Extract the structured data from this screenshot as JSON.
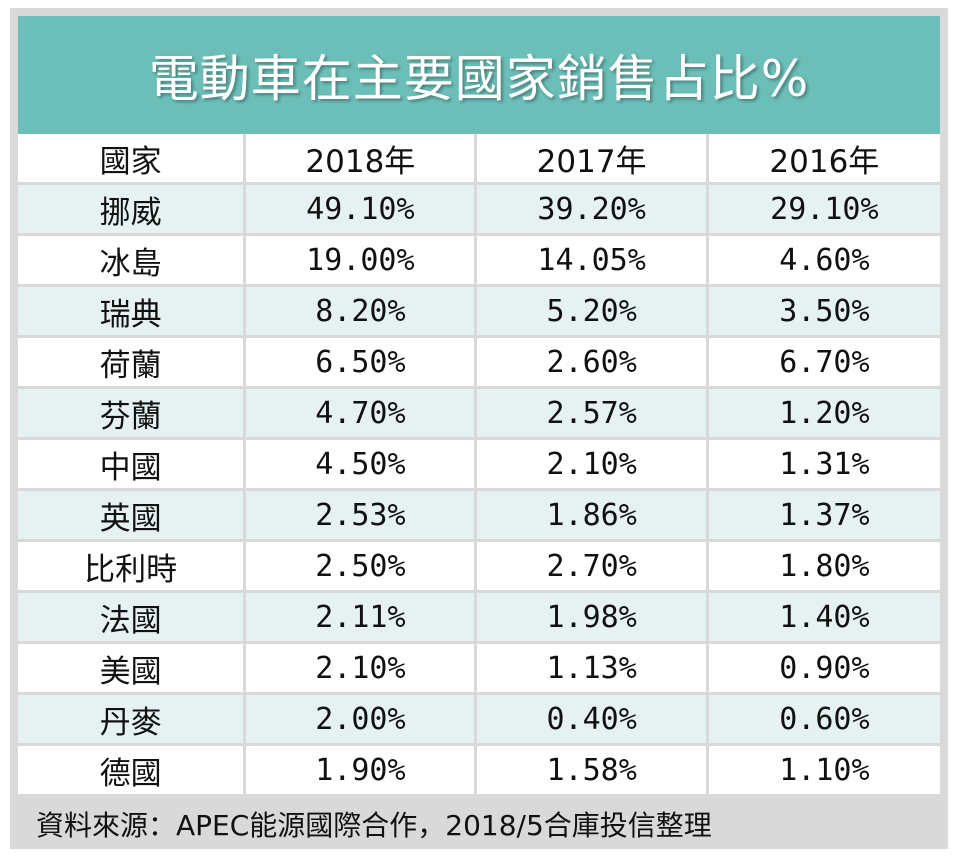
{
  "chart_data": {
    "type": "table",
    "title": "電動車在主要國家銷售占比%",
    "columns": [
      "國家",
      "2018年",
      "2017年",
      "2016年"
    ],
    "rows": [
      {
        "country": "挪威",
        "values": [
          "49.10%",
          "39.20%",
          "29.10%"
        ]
      },
      {
        "country": "冰島",
        "values": [
          "19.00%",
          "14.05%",
          "4.60%"
        ]
      },
      {
        "country": "瑞典",
        "values": [
          "8.20%",
          "5.20%",
          "3.50%"
        ]
      },
      {
        "country": "荷蘭",
        "values": [
          "6.50%",
          "2.60%",
          "6.70%"
        ]
      },
      {
        "country": "芬蘭",
        "values": [
          "4.70%",
          "2.57%",
          "1.20%"
        ]
      },
      {
        "country": "中國",
        "values": [
          "4.50%",
          "2.10%",
          "1.31%"
        ]
      },
      {
        "country": "英國",
        "values": [
          "2.53%",
          "1.86%",
          "1.37%"
        ]
      },
      {
        "country": "比利時",
        "values": [
          "2.50%",
          "2.70%",
          "1.80%"
        ]
      },
      {
        "country": "法國",
        "values": [
          "2.11%",
          "1.98%",
          "1.40%"
        ]
      },
      {
        "country": "美國",
        "values": [
          "2.10%",
          "1.13%",
          "0.90%"
        ]
      },
      {
        "country": "丹麥",
        "values": [
          "2.00%",
          "0.40%",
          "0.60%"
        ]
      },
      {
        "country": "德國",
        "values": [
          "1.90%",
          "1.58%",
          "1.10%"
        ]
      }
    ],
    "source": "資料來源：APEC能源國際合作，2018/5合庫投信整理"
  },
  "colors": {
    "title_bar": "#6cbfb9",
    "row_tint": "#e6f2f2",
    "grid": "#d9d9d9"
  }
}
